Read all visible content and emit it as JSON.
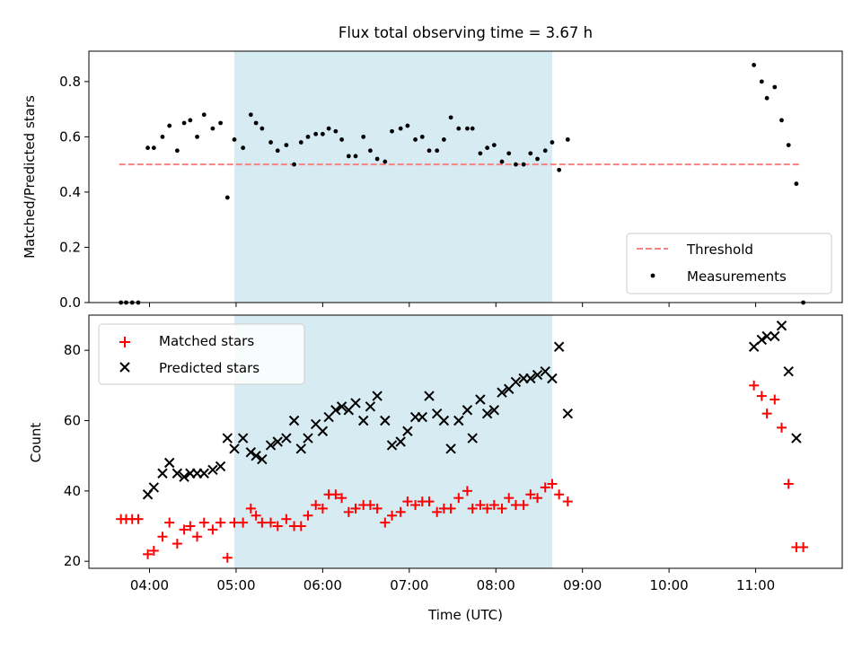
{
  "figure": {
    "title": "Flux total observing time = 3.67 h",
    "xlabel": "Time (UTC)",
    "x_ticks": [
      "04:00",
      "05:00",
      "06:00",
      "07:00",
      "08:00",
      "09:00",
      "10:00",
      "11:00"
    ]
  },
  "chart_data": [
    {
      "type": "scatter",
      "ylabel": "Matched/Predicted stars",
      "x_unit": "hours UTC",
      "xlim": [
        3.3,
        12.0
      ],
      "ylim": [
        0.0,
        0.91
      ],
      "y_ticks": [
        "0.0",
        "0.2",
        "0.4",
        "0.6",
        "0.8"
      ],
      "shaded_interval": {
        "x_start": 4.98,
        "x_end": 8.65,
        "color": "#add8e6"
      },
      "threshold": {
        "name": "Threshold",
        "value": 0.5,
        "x_start": 3.65,
        "x_end": 11.5,
        "color": "#ff7f7f"
      },
      "legend": {
        "position": "lower right",
        "entries": [
          "Threshold",
          "Measurements"
        ]
      },
      "series": [
        {
          "name": "Measurements",
          "color": "#000000",
          "marker": "dot",
          "x": [
            3.67,
            3.73,
            3.8,
            3.87,
            3.98,
            4.05,
            4.15,
            4.23,
            4.32,
            4.4,
            4.47,
            4.55,
            4.63,
            4.73,
            4.82,
            4.9,
            4.98,
            5.08,
            5.17,
            5.23,
            5.3,
            5.4,
            5.48,
            5.58,
            5.67,
            5.75,
            5.83,
            5.92,
            6.0,
            6.07,
            6.15,
            6.22,
            6.3,
            6.38,
            6.47,
            6.55,
            6.63,
            6.72,
            6.8,
            6.9,
            6.98,
            7.07,
            7.15,
            7.23,
            7.32,
            7.4,
            7.48,
            7.57,
            7.67,
            7.73,
            7.82,
            7.9,
            7.98,
            8.07,
            8.15,
            8.23,
            8.32,
            8.4,
            8.48,
            8.57,
            8.65,
            8.73,
            8.83,
            10.98,
            11.07,
            11.13,
            11.22,
            11.3,
            11.38,
            11.47,
            11.55
          ],
          "y": [
            0.0,
            0.0,
            0.0,
            0.0,
            0.56,
            0.56,
            0.6,
            0.64,
            0.55,
            0.65,
            0.66,
            0.6,
            0.68,
            0.63,
            0.65,
            0.38,
            0.59,
            0.56,
            0.68,
            0.65,
            0.63,
            0.58,
            0.55,
            0.57,
            0.5,
            0.58,
            0.6,
            0.61,
            0.61,
            0.63,
            0.62,
            0.59,
            0.53,
            0.53,
            0.6,
            0.55,
            0.52,
            0.51,
            0.62,
            0.63,
            0.64,
            0.59,
            0.6,
            0.55,
            0.55,
            0.59,
            0.67,
            0.63,
            0.63,
            0.63,
            0.54,
            0.56,
            0.57,
            0.51,
            0.54,
            0.5,
            0.5,
            0.54,
            0.52,
            0.55,
            0.58,
            0.48,
            0.59,
            0.86,
            0.8,
            0.74,
            0.78,
            0.66,
            0.57,
            0.43,
            0.0
          ]
        }
      ]
    },
    {
      "type": "scatter",
      "ylabel": "Count",
      "x_unit": "hours UTC",
      "xlim": [
        3.3,
        12.0
      ],
      "ylim": [
        18,
        90
      ],
      "y_ticks": [
        "20",
        "40",
        "60",
        "80"
      ],
      "shaded_interval": {
        "x_start": 4.98,
        "x_end": 8.65,
        "color": "#add8e6"
      },
      "legend": {
        "position": "upper left",
        "entries": [
          "Matched stars",
          "Predicted stars"
        ]
      },
      "series": [
        {
          "name": "Matched stars",
          "color": "#ff0000",
          "marker": "plus",
          "x": [
            3.67,
            3.73,
            3.8,
            3.87,
            3.98,
            4.05,
            4.15,
            4.23,
            4.32,
            4.4,
            4.47,
            4.55,
            4.63,
            4.73,
            4.82,
            4.9,
            4.98,
            5.08,
            5.17,
            5.23,
            5.3,
            5.4,
            5.48,
            5.58,
            5.67,
            5.75,
            5.83,
            5.92,
            6.0,
            6.07,
            6.15,
            6.22,
            6.3,
            6.38,
            6.47,
            6.55,
            6.63,
            6.72,
            6.8,
            6.9,
            6.98,
            7.07,
            7.15,
            7.23,
            7.32,
            7.4,
            7.48,
            7.57,
            7.67,
            7.73,
            7.82,
            7.9,
            7.98,
            8.07,
            8.15,
            8.23,
            8.32,
            8.4,
            8.48,
            8.57,
            8.65,
            8.73,
            8.83,
            10.98,
            11.07,
            11.13,
            11.22,
            11.3,
            11.38,
            11.47,
            11.55
          ],
          "y": [
            32,
            32,
            32,
            32,
            22,
            23,
            27,
            31,
            25,
            29,
            30,
            27,
            31,
            29,
            31,
            21,
            31,
            31,
            35,
            33,
            31,
            31,
            30,
            32,
            30,
            30,
            33,
            36,
            35,
            39,
            39,
            38,
            34,
            35,
            36,
            36,
            35,
            31,
            33,
            34,
            37,
            36,
            37,
            37,
            34,
            35,
            35,
            38,
            40,
            35,
            36,
            35,
            36,
            35,
            38,
            36,
            36,
            39,
            38,
            41,
            42,
            39,
            37,
            70,
            67,
            62,
            66,
            58,
            42,
            24,
            24
          ]
        },
        {
          "name": "Predicted stars",
          "color": "#000000",
          "marker": "x",
          "x": [
            3.98,
            4.05,
            4.15,
            4.23,
            4.32,
            4.4,
            4.47,
            4.55,
            4.63,
            4.73,
            4.82,
            4.9,
            4.98,
            5.08,
            5.17,
            5.23,
            5.3,
            5.4,
            5.48,
            5.58,
            5.67,
            5.75,
            5.83,
            5.92,
            6.0,
            6.07,
            6.15,
            6.22,
            6.3,
            6.38,
            6.47,
            6.55,
            6.63,
            6.72,
            6.8,
            6.9,
            6.98,
            7.07,
            7.15,
            7.23,
            7.32,
            7.4,
            7.48,
            7.57,
            7.67,
            7.73,
            7.82,
            7.9,
            7.98,
            8.07,
            8.15,
            8.23,
            8.32,
            8.4,
            8.48,
            8.57,
            8.65,
            8.73,
            8.83,
            10.98,
            11.07,
            11.13,
            11.22,
            11.3,
            11.38,
            11.47
          ],
          "y": [
            39,
            41,
            45,
            48,
            45,
            44,
            45,
            45,
            45,
            46,
            47,
            55,
            52,
            55,
            51,
            50,
            49,
            53,
            54,
            55,
            60,
            52,
            55,
            59,
            57,
            61,
            63,
            64,
            63,
            65,
            60,
            64,
            67,
            60,
            53,
            54,
            57,
            61,
            61,
            67,
            62,
            60,
            52,
            60,
            63,
            55,
            66,
            62,
            63,
            68,
            69,
            71,
            72,
            72,
            73,
            74,
            72,
            81,
            62,
            81,
            83,
            84,
            84,
            87,
            74,
            55
          ]
        }
      ]
    }
  ]
}
